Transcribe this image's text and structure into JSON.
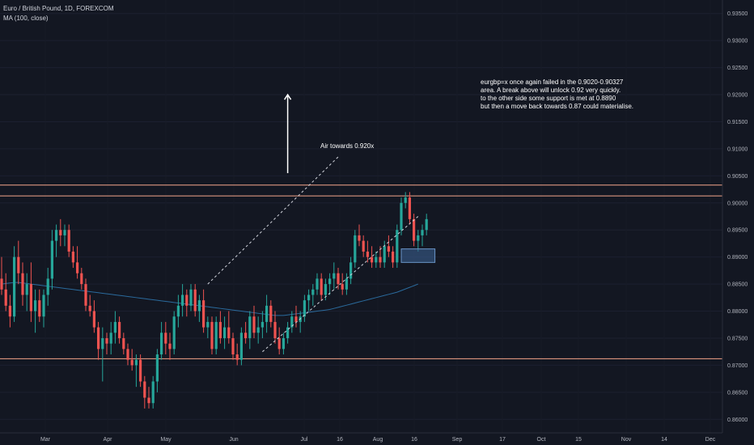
{
  "header": {
    "symbol_title": "Euro / British Pound, 1D, FOREXCOM",
    "indicator": "MA (100, close)"
  },
  "annotations": {
    "air_label": "Air towards 0.920x",
    "note_text": "eurgbp=x once again failed in the 0.9020-0.90327\narea. A break above will unlock 0.92 very quickly.\nto the other side some support is met at 0.8890\nbut then a move back towards 0.87 could materialise."
  },
  "colors": {
    "background": "#131722",
    "bull": "#26a69a",
    "bear": "#ef5350",
    "ma": "#2a6a9c",
    "level": "#f5a58a",
    "channel": "#d1d4dc",
    "zone_fill": "#3b5f8f",
    "zone_stroke": "#6a95c8"
  },
  "chart_data": {
    "type": "candlestick",
    "title": "Euro / British Pound, 1D, FOREXCOM",
    "ylim": [
      0.8575,
      0.9375
    ],
    "y_ticks": [
      "0.93500",
      "0.93000",
      "0.92500",
      "0.92000",
      "0.91500",
      "0.91000",
      "0.90500",
      "0.90000",
      "0.89500",
      "0.89000",
      "0.88500",
      "0.88000",
      "0.87500",
      "0.87000",
      "0.86500",
      "0.86000"
    ],
    "x_tick_labels": [
      "Mar",
      "Apr",
      "May",
      "Jun",
      "Jul",
      "16",
      "Aug",
      "16",
      "Sep",
      "17",
      "Oct",
      "15",
      "Nov",
      "14",
      "Dec"
    ],
    "horizontal_levels": [
      0.9033,
      0.9013,
      0.8712
    ],
    "candles": [
      [
        0.886,
        0.89,
        0.883,
        0.884
      ],
      [
        0.884,
        0.887,
        0.88,
        0.881
      ],
      [
        0.881,
        0.883,
        0.877,
        0.879
      ],
      [
        0.879,
        0.892,
        0.878,
        0.89
      ],
      [
        0.89,
        0.893,
        0.885,
        0.887
      ],
      [
        0.887,
        0.889,
        0.881,
        0.883
      ],
      [
        0.883,
        0.887,
        0.88,
        0.885
      ],
      [
        0.885,
        0.889,
        0.878,
        0.88
      ],
      [
        0.88,
        0.884,
        0.876,
        0.882
      ],
      [
        0.882,
        0.884,
        0.878,
        0.879
      ],
      [
        0.879,
        0.884,
        0.877,
        0.883
      ],
      [
        0.883,
        0.888,
        0.881,
        0.886
      ],
      [
        0.886,
        0.895,
        0.884,
        0.893
      ],
      [
        0.893,
        0.896,
        0.89,
        0.895
      ],
      [
        0.895,
        0.897,
        0.892,
        0.894
      ],
      [
        0.894,
        0.896,
        0.892,
        0.895
      ],
      [
        0.895,
        0.896,
        0.89,
        0.891
      ],
      [
        0.891,
        0.892,
        0.888,
        0.889
      ],
      [
        0.889,
        0.892,
        0.886,
        0.887
      ],
      [
        0.887,
        0.888,
        0.884,
        0.885
      ],
      [
        0.885,
        0.886,
        0.88,
        0.881
      ],
      [
        0.881,
        0.883,
        0.879,
        0.88
      ],
      [
        0.88,
        0.882,
        0.876,
        0.877
      ],
      [
        0.877,
        0.878,
        0.871,
        0.873
      ],
      [
        0.873,
        0.877,
        0.867,
        0.875
      ],
      [
        0.875,
        0.876,
        0.872,
        0.874
      ],
      [
        0.874,
        0.878,
        0.872,
        0.876
      ],
      [
        0.876,
        0.88,
        0.874,
        0.878
      ],
      [
        0.878,
        0.879,
        0.874,
        0.875
      ],
      [
        0.875,
        0.876,
        0.872,
        0.873
      ],
      [
        0.873,
        0.874,
        0.87,
        0.871
      ],
      [
        0.871,
        0.873,
        0.869,
        0.87
      ],
      [
        0.87,
        0.872,
        0.866,
        0.871
      ],
      [
        0.871,
        0.872,
        0.866,
        0.867
      ],
      [
        0.867,
        0.868,
        0.862,
        0.864
      ],
      [
        0.864,
        0.866,
        0.862,
        0.863
      ],
      [
        0.863,
        0.868,
        0.862,
        0.867
      ],
      [
        0.867,
        0.873,
        0.865,
        0.872
      ],
      [
        0.872,
        0.878,
        0.871,
        0.876
      ],
      [
        0.876,
        0.878,
        0.872,
        0.874
      ],
      [
        0.874,
        0.876,
        0.871,
        0.873
      ],
      [
        0.873,
        0.88,
        0.872,
        0.879
      ],
      [
        0.879,
        0.883,
        0.877,
        0.881
      ],
      [
        0.881,
        0.885,
        0.879,
        0.883
      ],
      [
        0.883,
        0.884,
        0.879,
        0.881
      ],
      [
        0.881,
        0.885,
        0.88,
        0.884
      ],
      [
        0.884,
        0.885,
        0.879,
        0.88
      ],
      [
        0.88,
        0.883,
        0.878,
        0.882
      ],
      [
        0.882,
        0.884,
        0.876,
        0.877
      ],
      [
        0.877,
        0.879,
        0.875,
        0.878
      ],
      [
        0.878,
        0.879,
        0.872,
        0.873
      ],
      [
        0.873,
        0.879,
        0.872,
        0.878
      ],
      [
        0.878,
        0.88,
        0.874,
        0.875
      ],
      [
        0.875,
        0.879,
        0.873,
        0.877
      ],
      [
        0.877,
        0.88,
        0.874,
        0.875
      ],
      [
        0.875,
        0.876,
        0.871,
        0.872
      ],
      [
        0.872,
        0.874,
        0.87,
        0.871
      ],
      [
        0.871,
        0.877,
        0.87,
        0.876
      ],
      [
        0.876,
        0.878,
        0.874,
        0.875
      ],
      [
        0.875,
        0.88,
        0.873,
        0.879
      ],
      [
        0.879,
        0.881,
        0.875,
        0.876
      ],
      [
        0.876,
        0.879,
        0.874,
        0.877
      ],
      [
        0.877,
        0.88,
        0.875,
        0.878
      ],
      [
        0.878,
        0.883,
        0.876,
        0.881
      ],
      [
        0.881,
        0.882,
        0.877,
        0.878
      ],
      [
        0.878,
        0.88,
        0.874,
        0.875
      ],
      [
        0.875,
        0.877,
        0.872,
        0.873
      ],
      [
        0.873,
        0.876,
        0.872,
        0.875
      ],
      [
        0.875,
        0.878,
        0.874,
        0.877
      ],
      [
        0.877,
        0.88,
        0.876,
        0.879
      ],
      [
        0.879,
        0.881,
        0.877,
        0.878
      ],
      [
        0.878,
        0.88,
        0.876,
        0.879
      ],
      [
        0.879,
        0.883,
        0.878,
        0.882
      ],
      [
        0.882,
        0.884,
        0.88,
        0.883
      ],
      [
        0.883,
        0.885,
        0.881,
        0.884
      ],
      [
        0.884,
        0.887,
        0.883,
        0.886
      ],
      [
        0.886,
        0.887,
        0.882,
        0.883
      ],
      [
        0.883,
        0.886,
        0.882,
        0.885
      ],
      [
        0.885,
        0.887,
        0.883,
        0.886
      ],
      [
        0.886,
        0.889,
        0.884,
        0.887
      ],
      [
        0.887,
        0.888,
        0.884,
        0.885
      ],
      [
        0.885,
        0.887,
        0.883,
        0.884
      ],
      [
        0.884,
        0.887,
        0.883,
        0.886
      ],
      [
        0.886,
        0.89,
        0.885,
        0.889
      ],
      [
        0.889,
        0.895,
        0.888,
        0.894
      ],
      [
        0.894,
        0.896,
        0.892,
        0.893
      ],
      [
        0.893,
        0.894,
        0.89,
        0.891
      ],
      [
        0.891,
        0.893,
        0.889,
        0.89
      ],
      [
        0.89,
        0.892,
        0.888,
        0.889
      ],
      [
        0.889,
        0.891,
        0.888,
        0.89
      ],
      [
        0.89,
        0.892,
        0.888,
        0.889
      ],
      [
        0.889,
        0.893,
        0.888,
        0.892
      ],
      [
        0.892,
        0.894,
        0.89,
        0.891
      ],
      [
        0.891,
        0.892,
        0.888,
        0.889
      ],
      [
        0.889,
        0.896,
        0.888,
        0.895
      ],
      [
        0.895,
        0.901,
        0.894,
        0.9
      ],
      [
        0.9,
        0.902,
        0.899,
        0.901
      ],
      [
        0.901,
        0.902,
        0.896,
        0.897
      ],
      [
        0.897,
        0.898,
        0.892,
        0.893
      ],
      [
        0.893,
        0.895,
        0.891,
        0.894
      ],
      [
        0.894,
        0.896,
        0.892,
        0.895
      ],
      [
        0.895,
        0.898,
        0.894,
        0.897
      ]
    ],
    "moving_average": {
      "name": "MA (100, close)",
      "values": [
        0.885,
        0.8851,
        0.8852,
        0.8853,
        0.8853,
        0.8852,
        0.8851,
        0.885,
        0.8849,
        0.8848,
        0.8847,
        0.8846,
        0.8845,
        0.8844,
        0.8843,
        0.8842,
        0.8841,
        0.884,
        0.8839,
        0.8838,
        0.8837,
        0.8836,
        0.8835,
        0.8834,
        0.8833,
        0.8832,
        0.8831,
        0.883,
        0.8829,
        0.8828,
        0.8827,
        0.8826,
        0.8825,
        0.8824,
        0.8823,
        0.8822,
        0.8821,
        0.882,
        0.8819,
        0.8818,
        0.8817,
        0.8816,
        0.8815,
        0.8814,
        0.8813,
        0.8812,
        0.8811,
        0.881,
        0.8809,
        0.8808,
        0.8807,
        0.8806,
        0.8805,
        0.8804,
        0.8803,
        0.8802,
        0.8801,
        0.88,
        0.8799,
        0.8798,
        0.8797,
        0.8796,
        0.8795,
        0.8794,
        0.8793,
        0.8792,
        0.8792,
        0.8792,
        0.8793,
        0.8794,
        0.8795,
        0.8796,
        0.8797,
        0.8798,
        0.8799,
        0.88,
        0.8801,
        0.8802,
        0.8803,
        0.8805,
        0.8807,
        0.8809,
        0.8811,
        0.8813,
        0.8815,
        0.8817,
        0.8819,
        0.8821,
        0.8823,
        0.8825,
        0.8827,
        0.8829,
        0.8831,
        0.8833,
        0.8835,
        0.8838,
        0.8841,
        0.8844,
        0.8847,
        0.885
      ]
    },
    "channel_lines": [
      {
        "from": [
          49,
          0.885
        ],
        "to": [
          80,
          0.9085
        ]
      },
      {
        "from": [
          62,
          0.8725
        ],
        "to": [
          99,
          0.8975
        ]
      }
    ],
    "support_zone": {
      "start_index": 95,
      "end_index": 103,
      "high": 0.8915,
      "low": 0.889
    },
    "air_arrow": {
      "index": 68,
      "from": 0.9055,
      "to": 0.92
    }
  }
}
